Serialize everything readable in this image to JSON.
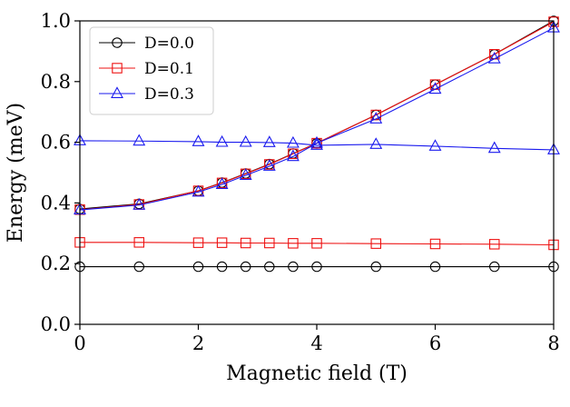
{
  "chart_data": {
    "type": "line",
    "title": "",
    "xlabel": "Magnetic field (T)",
    "ylabel": "Energy (meV)",
    "xlim": [
      0,
      8
    ],
    "ylim": [
      0,
      1.0
    ],
    "xticks": [
      0,
      2,
      4,
      6,
      8
    ],
    "xtick_labels": [
      "0",
      "2",
      "4",
      "6",
      "8"
    ],
    "yticks": [
      0.0,
      0.2,
      0.4,
      0.6,
      0.8,
      1.0
    ],
    "ytick_labels": [
      "0.0",
      "0.2",
      "0.4",
      "0.6",
      "0.8",
      "1.0"
    ],
    "grid": false,
    "legend_position": "top-left",
    "series": [
      {
        "name": "D=0.0",
        "color": "#000000",
        "marker": "circle",
        "branches": [
          {
            "x": [
              0,
              1,
              2,
              2.4,
              2.8,
              3.2,
              3.6,
              4,
              5,
              6,
              7,
              8
            ],
            "y": [
              0.19,
              0.19,
              0.19,
              0.19,
              0.19,
              0.19,
              0.19,
              0.19,
              0.19,
              0.19,
              0.19,
              0.19
            ]
          },
          {
            "x": [
              0,
              1,
              2,
              2.4,
              2.8,
              3.2,
              3.6,
              4,
              5,
              6,
              7,
              8
            ],
            "y": [
              0.38,
              0.397,
              0.44,
              0.467,
              0.497,
              0.528,
              0.563,
              0.597,
              0.69,
              0.79,
              0.89,
              1.0
            ]
          }
        ]
      },
      {
        "name": "D=0.1",
        "color": "#ee1111",
        "marker": "square",
        "branches": [
          {
            "x": [
              0,
              1,
              2,
              2.4,
              2.8,
              3.2,
              3.6,
              4,
              5,
              6,
              7,
              8
            ],
            "y": [
              0.27,
              0.27,
              0.269,
              0.269,
              0.268,
              0.268,
              0.267,
              0.267,
              0.266,
              0.265,
              0.264,
              0.262
            ]
          },
          {
            "x": [
              0,
              1,
              2,
              2.4,
              2.8,
              3.2,
              3.6,
              4,
              5,
              6,
              7,
              8
            ],
            "y": [
              0.378,
              0.395,
              0.44,
              0.466,
              0.496,
              0.527,
              0.562,
              0.597,
              0.69,
              0.79,
              0.89,
              0.997
            ]
          }
        ]
      },
      {
        "name": "D=0.3",
        "color": "#1a1aee",
        "marker": "triangle",
        "branches": [
          {
            "x": [
              0,
              1,
              2,
              2.4,
              2.8,
              3.2,
              3.6,
              4,
              5,
              6,
              7,
              8
            ],
            "y": [
              0.605,
              0.604,
              0.602,
              0.6,
              0.6,
              0.599,
              0.597,
              0.59,
              0.593,
              0.587,
              0.58,
              0.575
            ]
          },
          {
            "x": [
              0,
              1,
              2,
              2.4,
              2.8,
              3.2,
              3.6,
              4,
              5,
              6,
              7,
              8
            ],
            "y": [
              0.377,
              0.393,
              0.436,
              0.461,
              0.491,
              0.521,
              0.553,
              0.597,
              0.677,
              0.775,
              0.875,
              0.977
            ]
          }
        ]
      }
    ]
  }
}
